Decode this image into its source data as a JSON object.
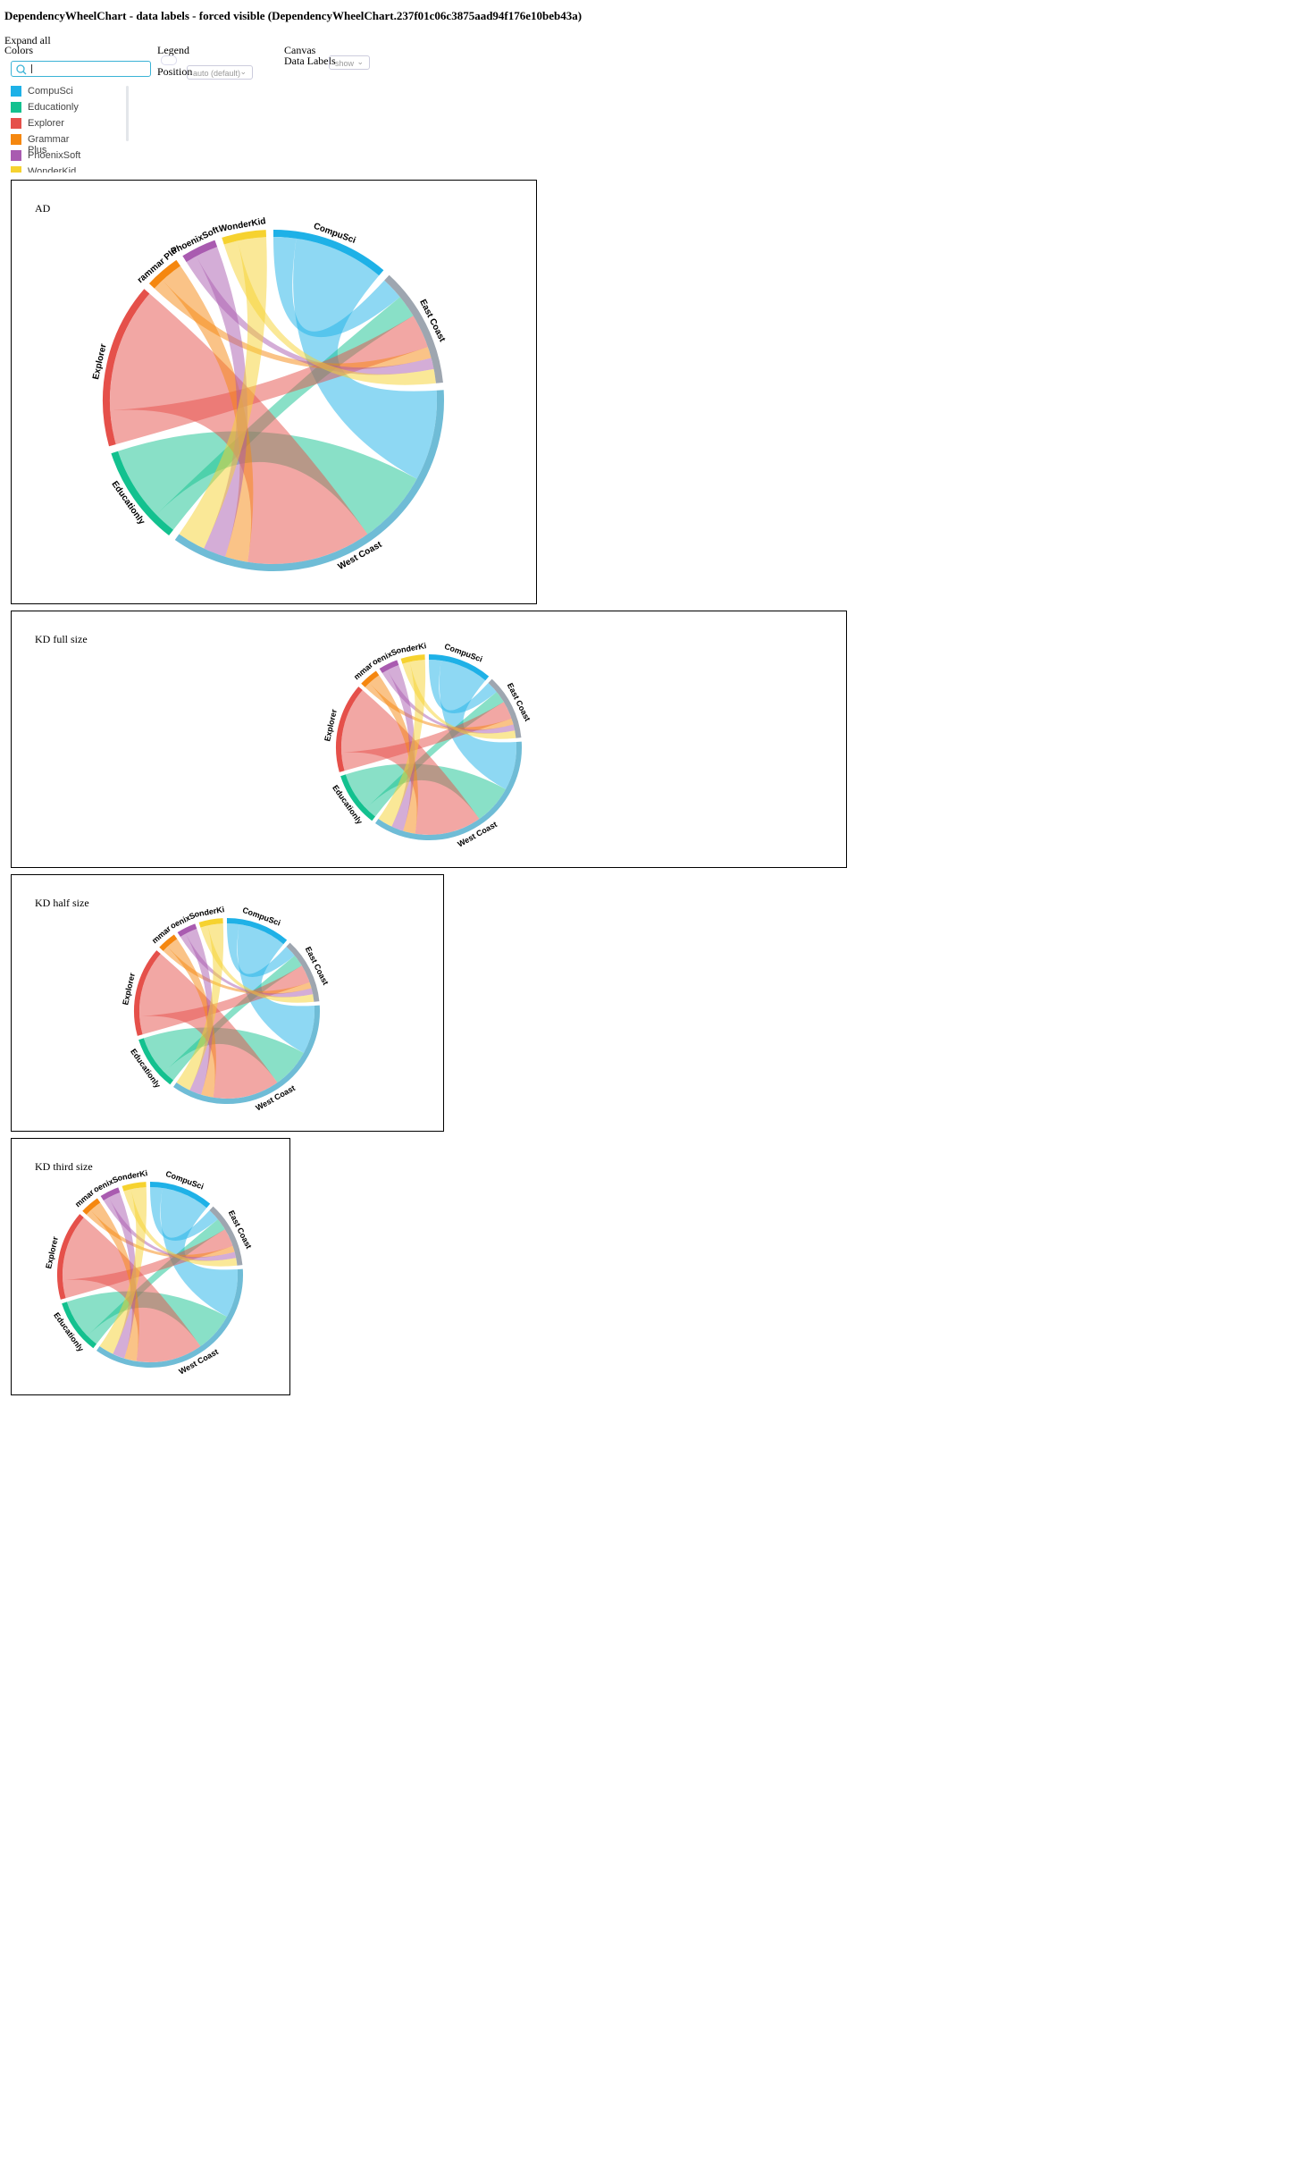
{
  "header": {
    "title": "DependencyWheelChart - data labels - forced visible (DependencyWheelChart.237f01c06c3875aad94f176e10beb43a)"
  },
  "controls": {
    "expand_all": "Expand all",
    "colors": "Colors",
    "color_list": [
      {
        "name": "CompuSci",
        "color": "#1eb1e7"
      },
      {
        "name": "Educationly",
        "color": "#13c18f"
      },
      {
        "name": "Explorer",
        "color": "#e5504a"
      },
      {
        "name": "Grammar Plus",
        "color": "#f5870f"
      },
      {
        "name": "PhoenixSoft",
        "color": "#a95bb0"
      },
      {
        "name": "WonderKid",
        "color": "#f6d22f"
      }
    ],
    "legend": "Legend",
    "position": "Position",
    "position_value": "auto (default)",
    "canvas": "Canvas",
    "data_labels": "Data Labels",
    "data_labels_value": "show"
  },
  "chart_data": [
    {
      "type": "dependencywheel",
      "title": "AD",
      "nodes": [
        {
          "name": "CompuSci",
          "color": "#1eb1e7"
        },
        {
          "name": "East Coast",
          "color": "#9ea6b0"
        },
        {
          "name": "West Coast",
          "color": "#6fbcd6"
        },
        {
          "name": "Educationly",
          "color": "#13c18f"
        },
        {
          "name": "Explorer",
          "color": "#e5504a"
        },
        {
          "name": "Grammar Plus",
          "color": "#f5870f"
        },
        {
          "name": "PhoenixSoft",
          "color": "#a95bb0"
        },
        {
          "name": "WonderKid",
          "color": "#f6d22f"
        }
      ],
      "links": [
        {
          "from": "CompuSci",
          "to": "East Coast",
          "weight": 8
        },
        {
          "from": "CompuSci",
          "to": "West Coast",
          "weight": 32
        },
        {
          "from": "Educationly",
          "to": "East Coast",
          "weight": 8
        },
        {
          "from": "Educationly",
          "to": "West Coast",
          "weight": 26
        },
        {
          "from": "Explorer",
          "to": "East Coast",
          "weight": 12
        },
        {
          "from": "Explorer",
          "to": "West Coast",
          "weight": 44
        },
        {
          "from": "Grammar Plus",
          "to": "East Coast",
          "weight": 4
        },
        {
          "from": "Grammar Plus",
          "to": "West Coast",
          "weight": 8
        },
        {
          "from": "PhoenixSoft",
          "to": "East Coast",
          "weight": 4
        },
        {
          "from": "PhoenixSoft",
          "to": "West Coast",
          "weight": 8
        },
        {
          "from": "WonderKid",
          "to": "East Coast",
          "weight": 5
        },
        {
          "from": "WonderKid",
          "to": "West Coast",
          "weight": 10
        }
      ],
      "data_labels": [
        "CompuSci",
        "East Coast",
        "West Coast",
        "Educationly",
        "Explorer",
        "rammar Plu",
        "PhoenixSoft",
        "WonderKid"
      ]
    },
    {
      "type": "dependencywheel",
      "title": "KD full size",
      "nodes": [
        {
          "name": "CompuSci",
          "color": "#1eb1e7"
        },
        {
          "name": "East Coast",
          "color": "#9ea6b0"
        },
        {
          "name": "West Coast",
          "color": "#6fbcd6"
        },
        {
          "name": "Educationly",
          "color": "#13c18f"
        },
        {
          "name": "Explorer",
          "color": "#e5504a"
        },
        {
          "name": "Grammar Plus",
          "color": "#f5870f"
        },
        {
          "name": "PhoenixSoft",
          "color": "#a95bb0"
        },
        {
          "name": "WonderKid",
          "color": "#f6d22f"
        }
      ],
      "links": [
        {
          "from": "CompuSci",
          "to": "East Coast",
          "weight": 8
        },
        {
          "from": "CompuSci",
          "to": "West Coast",
          "weight": 32
        },
        {
          "from": "Educationly",
          "to": "East Coast",
          "weight": 8
        },
        {
          "from": "Educationly",
          "to": "West Coast",
          "weight": 26
        },
        {
          "from": "Explorer",
          "to": "East Coast",
          "weight": 12
        },
        {
          "from": "Explorer",
          "to": "West Coast",
          "weight": 44
        },
        {
          "from": "Grammar Plus",
          "to": "East Coast",
          "weight": 4
        },
        {
          "from": "Grammar Plus",
          "to": "West Coast",
          "weight": 8
        },
        {
          "from": "PhoenixSoft",
          "to": "East Coast",
          "weight": 4
        },
        {
          "from": "PhoenixSoft",
          "to": "West Coast",
          "weight": 8
        },
        {
          "from": "WonderKid",
          "to": "East Coast",
          "weight": 5
        },
        {
          "from": "WonderKid",
          "to": "West Coast",
          "weight": 10
        }
      ],
      "data_labels": [
        "CompuSci",
        "East Coast",
        "West Coast",
        "Educationly",
        "Explorer",
        "mmar",
        "oenixS",
        "onderKi"
      ]
    },
    {
      "type": "dependencywheel",
      "title": "KD half size",
      "nodes": [
        {
          "name": "CompuSci",
          "color": "#1eb1e7"
        },
        {
          "name": "East Coast",
          "color": "#9ea6b0"
        },
        {
          "name": "West Coast",
          "color": "#6fbcd6"
        },
        {
          "name": "Educationly",
          "color": "#13c18f"
        },
        {
          "name": "Explorer",
          "color": "#e5504a"
        },
        {
          "name": "Grammar Plus",
          "color": "#f5870f"
        },
        {
          "name": "PhoenixSoft",
          "color": "#a95bb0"
        },
        {
          "name": "WonderKid",
          "color": "#f6d22f"
        }
      ],
      "links": [
        {
          "from": "CompuSci",
          "to": "East Coast",
          "weight": 8
        },
        {
          "from": "CompuSci",
          "to": "West Coast",
          "weight": 32
        },
        {
          "from": "Educationly",
          "to": "East Coast",
          "weight": 8
        },
        {
          "from": "Educationly",
          "to": "West Coast",
          "weight": 26
        },
        {
          "from": "Explorer",
          "to": "East Coast",
          "weight": 12
        },
        {
          "from": "Explorer",
          "to": "West Coast",
          "weight": 44
        },
        {
          "from": "Grammar Plus",
          "to": "East Coast",
          "weight": 4
        },
        {
          "from": "Grammar Plus",
          "to": "West Coast",
          "weight": 8
        },
        {
          "from": "PhoenixSoft",
          "to": "East Coast",
          "weight": 4
        },
        {
          "from": "PhoenixSoft",
          "to": "West Coast",
          "weight": 8
        },
        {
          "from": "WonderKid",
          "to": "East Coast",
          "weight": 5
        },
        {
          "from": "WonderKid",
          "to": "West Coast",
          "weight": 10
        }
      ],
      "data_labels": [
        "CompuSci",
        "East Coast",
        "West Coast",
        "Educationly",
        "Explorer",
        "mmar",
        "oenixS",
        "onderKi"
      ]
    },
    {
      "type": "dependencywheel",
      "title": "KD third size",
      "nodes": [
        {
          "name": "CompuSci",
          "color": "#1eb1e7"
        },
        {
          "name": "East Coast",
          "color": "#9ea6b0"
        },
        {
          "name": "West Coast",
          "color": "#6fbcd6"
        },
        {
          "name": "Educationly",
          "color": "#13c18f"
        },
        {
          "name": "Explorer",
          "color": "#e5504a"
        },
        {
          "name": "Grammar Plus",
          "color": "#f5870f"
        },
        {
          "name": "PhoenixSoft",
          "color": "#a95bb0"
        },
        {
          "name": "WonderKid",
          "color": "#f6d22f"
        }
      ],
      "links": [
        {
          "from": "CompuSci",
          "to": "East Coast",
          "weight": 8
        },
        {
          "from": "CompuSci",
          "to": "West Coast",
          "weight": 32
        },
        {
          "from": "Educationly",
          "to": "East Coast",
          "weight": 8
        },
        {
          "from": "Educationly",
          "to": "West Coast",
          "weight": 26
        },
        {
          "from": "Explorer",
          "to": "East Coast",
          "weight": 12
        },
        {
          "from": "Explorer",
          "to": "West Coast",
          "weight": 44
        },
        {
          "from": "Grammar Plus",
          "to": "East Coast",
          "weight": 4
        },
        {
          "from": "Grammar Plus",
          "to": "West Coast",
          "weight": 8
        },
        {
          "from": "PhoenixSoft",
          "to": "East Coast",
          "weight": 4
        },
        {
          "from": "PhoenixSoft",
          "to": "West Coast",
          "weight": 8
        },
        {
          "from": "WonderKid",
          "to": "East Coast",
          "weight": 5
        },
        {
          "from": "WonderKid",
          "to": "West Coast",
          "weight": 10
        }
      ],
      "data_labels": [
        "CompuSci",
        "East Coast",
        "West Coast",
        "Educationly",
        "Explorer",
        "mmar",
        "oenixS",
        "onderKi"
      ]
    }
  ]
}
